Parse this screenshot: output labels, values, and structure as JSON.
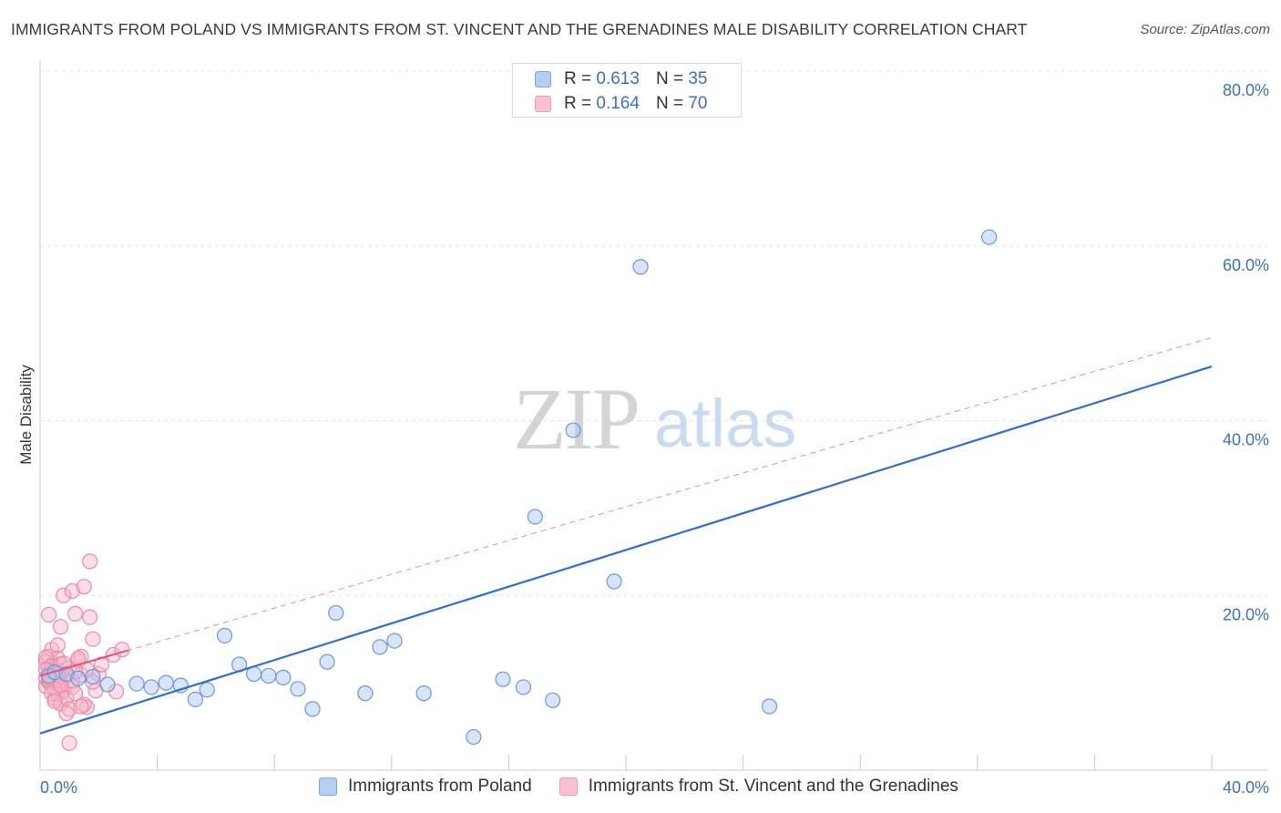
{
  "chart_data": {
    "type": "scatter",
    "title": "IMMIGRANTS FROM POLAND VS IMMIGRANTS FROM ST. VINCENT AND THE GRENADINES MALE DISABILITY CORRELATION CHART",
    "source": "Source: ZipAtlas.com",
    "watermark": {
      "zip": "ZIP",
      "atlas": "atlas"
    },
    "ylabel": "Male Disability",
    "xlim": [
      0,
      40
    ],
    "ylim": [
      0,
      80
    ],
    "x_tick_labels": {
      "min": "0.0%",
      "max": "40.0%"
    },
    "y_ticks": [
      {
        "value": 20,
        "label": "20.0%"
      },
      {
        "value": 40,
        "label": "40.0%"
      },
      {
        "value": 60,
        "label": "60.0%"
      },
      {
        "value": 80,
        "label": "80.0%"
      }
    ],
    "colors": {
      "poland_fill": "#a9c6f0",
      "poland_stroke": "#6a98d8",
      "poland_line": "#2f6fcb",
      "svg_fill": "#f7b6c9",
      "svg_stroke": "#e98aa8",
      "svg_line": "#e0557f",
      "grid": "#e4e4e4",
      "tick_label": "#3b6fc6"
    },
    "legend": {
      "r_label": "R =",
      "n_label": "N =",
      "rows": [
        {
          "r": "0.613",
          "n": "35"
        },
        {
          "r": "0.164",
          "n": "70"
        }
      ]
    },
    "series": [
      {
        "name": "Immigrants from Poland",
        "trend": {
          "x": [
            0,
            40
          ],
          "y": [
            4.2,
            46.2
          ],
          "style": "solid"
        },
        "points": [
          [
            0.3,
            10.8
          ],
          [
            0.5,
            11.2
          ],
          [
            0.9,
            11.0
          ],
          [
            1.3,
            10.5
          ],
          [
            1.8,
            10.7
          ],
          [
            2.3,
            9.8
          ],
          [
            3.3,
            9.9
          ],
          [
            3.8,
            9.5
          ],
          [
            4.3,
            10.0
          ],
          [
            4.8,
            9.7
          ],
          [
            5.3,
            8.1
          ],
          [
            5.7,
            9.2
          ],
          [
            6.3,
            15.4
          ],
          [
            6.8,
            12.1
          ],
          [
            7.3,
            11.0
          ],
          [
            7.8,
            10.8
          ],
          [
            8.3,
            10.6
          ],
          [
            8.8,
            9.3
          ],
          [
            9.3,
            7.0
          ],
          [
            9.8,
            12.4
          ],
          [
            10.1,
            18.0
          ],
          [
            11.1,
            8.8
          ],
          [
            11.6,
            14.1
          ],
          [
            12.1,
            14.8
          ],
          [
            13.1,
            8.8
          ],
          [
            14.8,
            3.8
          ],
          [
            15.8,
            10.4
          ],
          [
            16.5,
            9.5
          ],
          [
            16.9,
            29.0
          ],
          [
            17.5,
            8.0
          ],
          [
            18.2,
            38.9
          ],
          [
            19.6,
            21.6
          ],
          [
            20.5,
            57.6
          ],
          [
            24.9,
            7.3
          ],
          [
            32.4,
            61.0
          ]
        ]
      },
      {
        "name": "Immigrants from St. Vincent and the Grenadines",
        "trend": {
          "x": [
            0,
            40
          ],
          "y": [
            10.8,
            49.5
          ],
          "style": "dashed",
          "solid_until": 3.0
        },
        "points": [
          [
            0.2,
            10.5
          ],
          [
            0.3,
            11.6
          ],
          [
            0.2,
            12.4
          ],
          [
            0.4,
            9.8
          ],
          [
            0.3,
            13.0
          ],
          [
            0.5,
            10.9
          ],
          [
            0.4,
            12.0
          ],
          [
            0.6,
            10.2
          ],
          [
            0.3,
            11.1
          ],
          [
            0.5,
            11.8
          ],
          [
            0.7,
            10.0
          ],
          [
            0.2,
            9.6
          ],
          [
            0.4,
            13.8
          ],
          [
            0.6,
            12.8
          ],
          [
            0.3,
            17.8
          ],
          [
            0.5,
            8.2
          ],
          [
            0.7,
            7.6
          ],
          [
            0.4,
            10.7
          ],
          [
            0.6,
            11.3
          ],
          [
            0.8,
            10.4
          ],
          [
            0.2,
            12.9
          ],
          [
            0.5,
            11.4
          ],
          [
            0.3,
            10.1
          ],
          [
            0.8,
            9.1
          ],
          [
            0.6,
            8.7
          ],
          [
            0.4,
            11.9
          ],
          [
            0.7,
            12.1
          ],
          [
            0.3,
            10.3
          ],
          [
            0.5,
            9.3
          ],
          [
            0.2,
            11.5
          ],
          [
            0.6,
            14.3
          ],
          [
            0.9,
            10.8
          ],
          [
            0.7,
            16.4
          ],
          [
            0.8,
            20.0
          ],
          [
            0.9,
            8.3
          ],
          [
            1.0,
            11.7
          ],
          [
            1.1,
            20.5
          ],
          [
            1.0,
            7.0
          ],
          [
            1.2,
            17.9
          ],
          [
            1.1,
            9.5
          ],
          [
            1.3,
            12.5
          ],
          [
            1.4,
            10.9
          ],
          [
            1.5,
            21.0
          ],
          [
            1.4,
            13.0
          ],
          [
            1.6,
            11.5
          ],
          [
            1.7,
            17.5
          ],
          [
            1.6,
            7.2
          ],
          [
            1.8,
            15.0
          ],
          [
            1.7,
            23.9
          ],
          [
            1.9,
            9.1
          ],
          [
            2.0,
            11.0
          ],
          [
            1.5,
            7.5
          ],
          [
            1.2,
            8.8
          ],
          [
            0.9,
            6.5
          ],
          [
            1.0,
            3.1
          ],
          [
            2.5,
            13.2
          ],
          [
            2.6,
            9.0
          ],
          [
            2.8,
            13.8
          ],
          [
            1.3,
            12.8
          ],
          [
            0.8,
            12.2
          ],
          [
            0.4,
            8.8
          ],
          [
            0.6,
            11.0
          ],
          [
            0.3,
            10.6
          ],
          [
            1.1,
            10.2
          ],
          [
            1.2,
            11.3
          ],
          [
            0.5,
            7.9
          ],
          [
            0.7,
            9.7
          ],
          [
            1.8,
            10.1
          ],
          [
            1.4,
            7.3
          ],
          [
            2.1,
            12.1
          ]
        ]
      }
    ]
  }
}
